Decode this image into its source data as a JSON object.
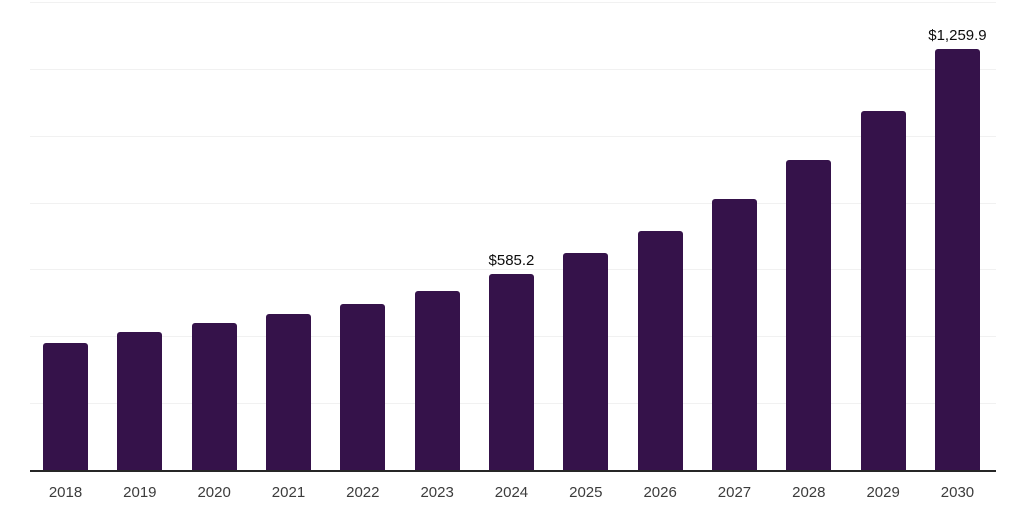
{
  "chart_data": {
    "type": "bar",
    "title": "",
    "xlabel": "",
    "ylabel": "",
    "categories": [
      "2018",
      "2019",
      "2020",
      "2021",
      "2022",
      "2023",
      "2024",
      "2025",
      "2026",
      "2027",
      "2028",
      "2029",
      "2030"
    ],
    "values": [
      379,
      413,
      440,
      467,
      498,
      535,
      585.2,
      648,
      715,
      810,
      928,
      1074,
      1259.9
    ],
    "data_labels": {
      "2024": "$585.2",
      "2030": "$1,259.9"
    },
    "ylim": [
      0,
      1400
    ],
    "gridline_step": 200,
    "grid": true,
    "legend": false,
    "y_axis_tick_labels_visible": false,
    "colors": {
      "bar": "#35124A",
      "axis_line": "#262626",
      "gridline": "#f1f1f1",
      "data_label_text": "#0d0d0d",
      "tick_label_text": "#3c3c3c",
      "background": "#ffffff"
    }
  }
}
